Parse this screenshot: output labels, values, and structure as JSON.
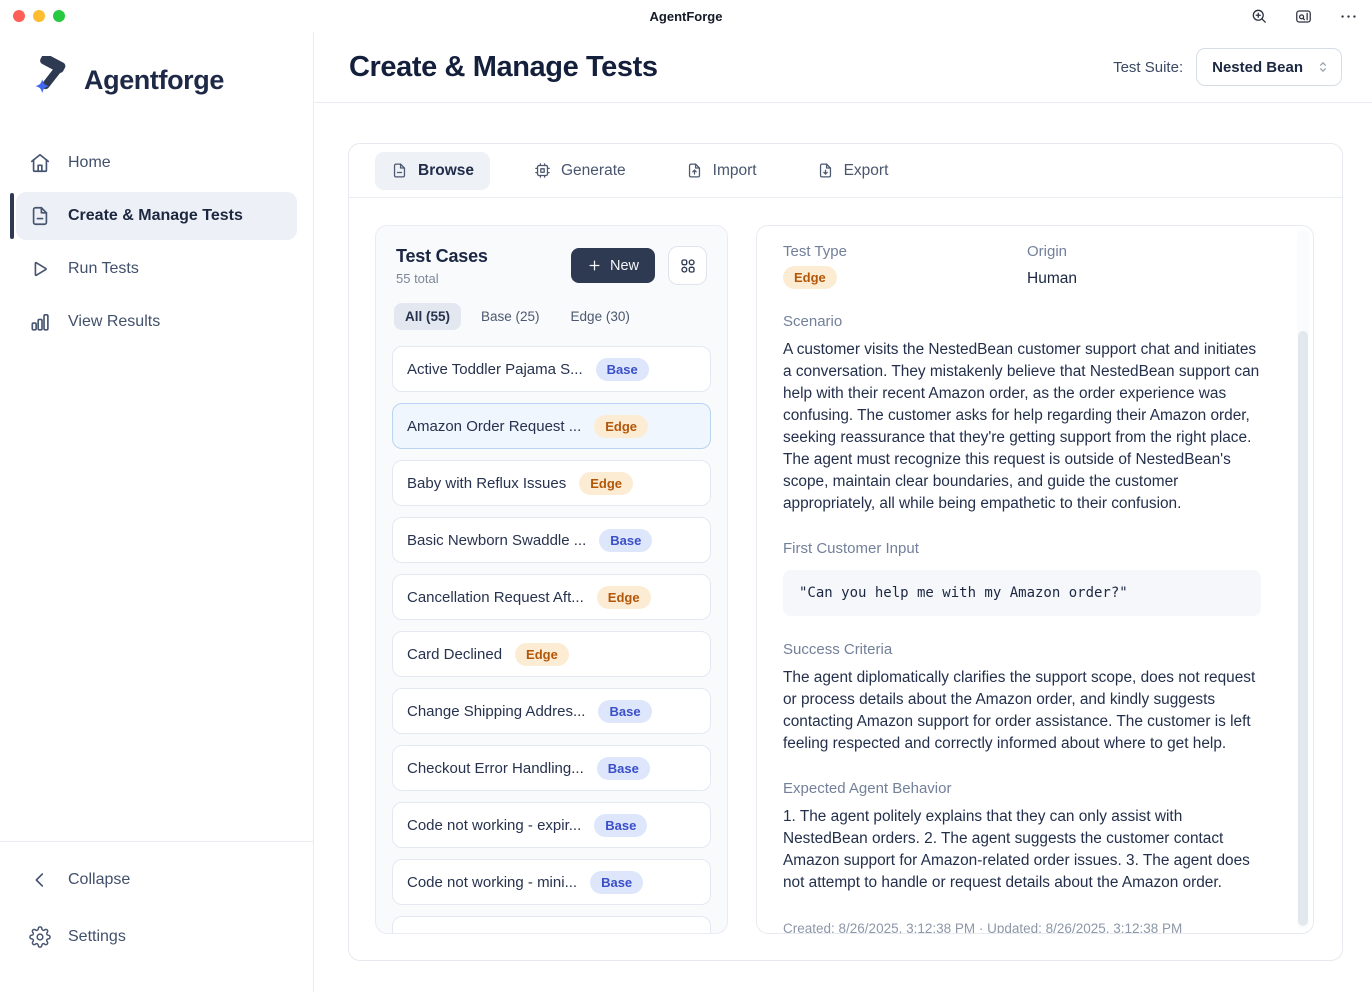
{
  "titlebar": {
    "title": "AgentForge",
    "traffic_lights": [
      "#ff5f57",
      "#febc2e",
      "#28c840"
    ],
    "icons": [
      "zoom-in",
      "tab-overview",
      "more"
    ]
  },
  "sidebar": {
    "brand": "Agentforge",
    "items": [
      {
        "label": "Home",
        "icon": "home",
        "active": false
      },
      {
        "label": "Create & Manage Tests",
        "icon": "file-text",
        "active": true
      },
      {
        "label": "Run Tests",
        "icon": "play",
        "active": false
      },
      {
        "label": "View Results",
        "icon": "chart",
        "active": false
      }
    ],
    "collapse_label": "Collapse",
    "settings_label": "Settings"
  },
  "header": {
    "title": "Create & Manage Tests",
    "test_suite_label": "Test Suite:",
    "test_suite_value": "Nested Bean"
  },
  "tabs": [
    {
      "label": "Browse",
      "icon": "file-text",
      "active": true
    },
    {
      "label": "Generate",
      "icon": "cpu",
      "active": false
    },
    {
      "label": "Import",
      "icon": "file-up",
      "active": false
    },
    {
      "label": "Export",
      "icon": "file-down",
      "active": false
    }
  ],
  "test_cases": {
    "title": "Test Cases",
    "total_label": "55 total",
    "new_button_label": "New",
    "filters": [
      {
        "label": "All (55)",
        "active": true
      },
      {
        "label": "Base (25)",
        "active": false
      },
      {
        "label": "Edge (30)",
        "active": false
      }
    ],
    "items": [
      {
        "title": "Active Toddler Pajama S...",
        "badge": "Base",
        "selected": false
      },
      {
        "title": "Amazon Order Request ...",
        "badge": "Edge",
        "selected": true
      },
      {
        "title": "Baby with Reflux Issues",
        "badge": "Edge",
        "selected": false
      },
      {
        "title": "Basic Newborn Swaddle ...",
        "badge": "Base",
        "selected": false
      },
      {
        "title": "Cancellation Request Aft...",
        "badge": "Edge",
        "selected": false
      },
      {
        "title": "Card Declined",
        "badge": "Edge",
        "selected": false
      },
      {
        "title": "Change Shipping Addres...",
        "badge": "Base",
        "selected": false
      },
      {
        "title": "Checkout Error Handling...",
        "badge": "Base",
        "selected": false
      },
      {
        "title": "Code not working - expir...",
        "badge": "Base",
        "selected": false
      },
      {
        "title": "Code not working - mini...",
        "badge": "Base",
        "selected": false
      }
    ]
  },
  "detail": {
    "test_type_label": "Test Type",
    "test_type_value": "Edge",
    "origin_label": "Origin",
    "origin_value": "Human",
    "scenario_label": "Scenario",
    "scenario_text": "A customer visits the NestedBean customer support chat and initiates a conversation. They mistakenly believe that NestedBean support can help with their recent Amazon order, as the order experience was confusing. The customer asks for help regarding their Amazon order, seeking reassurance that they're getting support from the right place. The agent must recognize this request is outside of NestedBean's scope, maintain clear boundaries, and guide the customer appropriately, all while being empathetic to their confusion.",
    "first_input_label": "First Customer Input",
    "first_input_value": "\"Can you help me with my Amazon order?\"",
    "success_label": "Success Criteria",
    "success_text": "The agent diplomatically clarifies the support scope, does not request or process details about the Amazon order, and kindly suggests contacting Amazon support for order assistance. The customer is left feeling respected and correctly informed about where to get help.",
    "behavior_label": "Expected Agent Behavior",
    "behavior_text": "1. The agent politely explains that they can only assist with NestedBean orders. 2. The agent suggests the customer contact Amazon support for Amazon-related order issues. 3. The agent does not attempt to handle or request details about the Amazon order.",
    "meta": "Created: 8/26/2025, 3:12:38 PM · Updated: 8/26/2025, 3:12:38 PM"
  },
  "colors": {
    "accent_dark": "#2e3a52",
    "brand_blue": "#4168f0",
    "badge_base_bg": "#dde6fb",
    "badge_base_text": "#3a4fc8",
    "badge_edge_bg": "#fdecd4",
    "badge_edge_text": "#b25709",
    "selected_card_bg": "#eff6fe",
    "selected_card_border": "#b9d3f1"
  }
}
